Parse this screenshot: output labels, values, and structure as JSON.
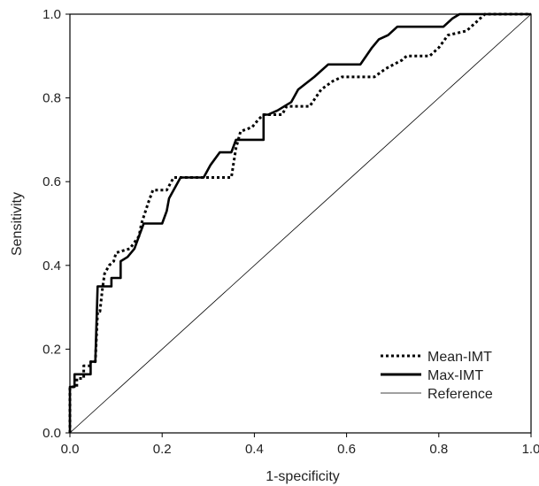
{
  "chart_data": {
    "type": "line",
    "title": "",
    "xlabel": "1-specificity",
    "ylabel": "Sensitivity",
    "xlim": [
      0,
      1
    ],
    "ylim": [
      0,
      1
    ],
    "xticks": [
      "0.0",
      "0.2",
      "0.4",
      "0.6",
      "0.8",
      "1.0"
    ],
    "yticks": [
      "0.0",
      "0.2",
      "0.4",
      "0.6",
      "0.8",
      "1.0"
    ],
    "grid": false,
    "legend_position": "bottom-right",
    "series": [
      {
        "name": "Mean-IMT",
        "style": "dotted",
        "color": "#000000",
        "points": [
          [
            0.0,
            0.0
          ],
          [
            0.0,
            0.11
          ],
          [
            0.015,
            0.11
          ],
          [
            0.015,
            0.13
          ],
          [
            0.03,
            0.13
          ],
          [
            0.03,
            0.16
          ],
          [
            0.045,
            0.16
          ],
          [
            0.045,
            0.17
          ],
          [
            0.055,
            0.17
          ],
          [
            0.06,
            0.29
          ],
          [
            0.065,
            0.29
          ],
          [
            0.07,
            0.34
          ],
          [
            0.075,
            0.38
          ],
          [
            0.085,
            0.4
          ],
          [
            0.095,
            0.41
          ],
          [
            0.1,
            0.43
          ],
          [
            0.13,
            0.44
          ],
          [
            0.15,
            0.47
          ],
          [
            0.155,
            0.5
          ],
          [
            0.17,
            0.55
          ],
          [
            0.18,
            0.58
          ],
          [
            0.21,
            0.58
          ],
          [
            0.225,
            0.61
          ],
          [
            0.35,
            0.61
          ],
          [
            0.36,
            0.68
          ],
          [
            0.37,
            0.72
          ],
          [
            0.395,
            0.73
          ],
          [
            0.41,
            0.75
          ],
          [
            0.42,
            0.76
          ],
          [
            0.46,
            0.76
          ],
          [
            0.47,
            0.78
          ],
          [
            0.52,
            0.78
          ],
          [
            0.545,
            0.82
          ],
          [
            0.57,
            0.84
          ],
          [
            0.59,
            0.85
          ],
          [
            0.66,
            0.85
          ],
          [
            0.685,
            0.87
          ],
          [
            0.72,
            0.89
          ],
          [
            0.73,
            0.9
          ],
          [
            0.78,
            0.9
          ],
          [
            0.8,
            0.92
          ],
          [
            0.82,
            0.95
          ],
          [
            0.86,
            0.96
          ],
          [
            0.88,
            0.98
          ],
          [
            0.89,
            0.99
          ],
          [
            0.9,
            1.0
          ],
          [
            1.0,
            1.0
          ]
        ]
      },
      {
        "name": "Max-IMT",
        "style": "solid",
        "color": "#000000",
        "points": [
          [
            0.0,
            0.0
          ],
          [
            0.0,
            0.11
          ],
          [
            0.01,
            0.11
          ],
          [
            0.01,
            0.14
          ],
          [
            0.03,
            0.14
          ],
          [
            0.045,
            0.14
          ],
          [
            0.045,
            0.17
          ],
          [
            0.055,
            0.17
          ],
          [
            0.06,
            0.35
          ],
          [
            0.09,
            0.35
          ],
          [
            0.09,
            0.37
          ],
          [
            0.11,
            0.37
          ],
          [
            0.11,
            0.41
          ],
          [
            0.125,
            0.42
          ],
          [
            0.14,
            0.44
          ],
          [
            0.15,
            0.47
          ],
          [
            0.16,
            0.5
          ],
          [
            0.2,
            0.5
          ],
          [
            0.21,
            0.53
          ],
          [
            0.215,
            0.56
          ],
          [
            0.22,
            0.57
          ],
          [
            0.24,
            0.61
          ],
          [
            0.29,
            0.61
          ],
          [
            0.305,
            0.64
          ],
          [
            0.325,
            0.67
          ],
          [
            0.35,
            0.67
          ],
          [
            0.36,
            0.7
          ],
          [
            0.42,
            0.7
          ],
          [
            0.42,
            0.76
          ],
          [
            0.43,
            0.76
          ],
          [
            0.45,
            0.77
          ],
          [
            0.48,
            0.79
          ],
          [
            0.495,
            0.82
          ],
          [
            0.53,
            0.85
          ],
          [
            0.56,
            0.88
          ],
          [
            0.63,
            0.88
          ],
          [
            0.655,
            0.92
          ],
          [
            0.67,
            0.94
          ],
          [
            0.69,
            0.95
          ],
          [
            0.71,
            0.97
          ],
          [
            0.81,
            0.97
          ],
          [
            0.83,
            0.99
          ],
          [
            0.845,
            1.0
          ],
          [
            1.0,
            1.0
          ]
        ]
      },
      {
        "name": "Reference",
        "style": "thin",
        "color": "#000000",
        "points": [
          [
            0.0,
            0.0
          ],
          [
            1.0,
            1.0
          ]
        ]
      }
    ]
  }
}
